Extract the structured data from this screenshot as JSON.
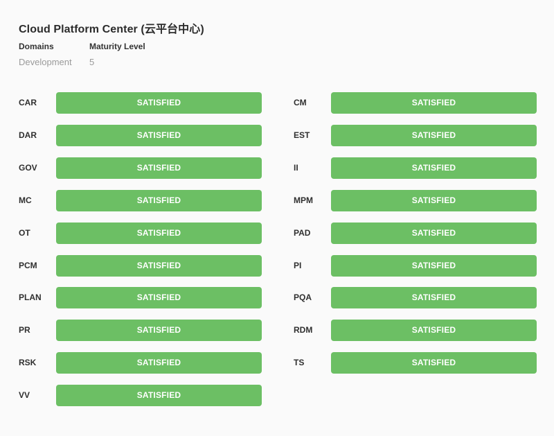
{
  "title": "Cloud Platform Center (云平台中心)",
  "meta": {
    "domains_label": "Domains",
    "maturity_label": "Maturity Level",
    "domains_value": "Development",
    "maturity_value": "5"
  },
  "colors": {
    "satisfied": "#6cbf64"
  },
  "left_column": [
    {
      "code": "CAR",
      "status": "SATISFIED"
    },
    {
      "code": "DAR",
      "status": "SATISFIED"
    },
    {
      "code": "GOV",
      "status": "SATISFIED"
    },
    {
      "code": "MC",
      "status": "SATISFIED"
    },
    {
      "code": "OT",
      "status": "SATISFIED"
    },
    {
      "code": "PCM",
      "status": "SATISFIED"
    },
    {
      "code": "PLAN",
      "status": "SATISFIED"
    },
    {
      "code": "PR",
      "status": "SATISFIED"
    },
    {
      "code": "RSK",
      "status": "SATISFIED"
    },
    {
      "code": "VV",
      "status": "SATISFIED"
    }
  ],
  "right_column": [
    {
      "code": "CM",
      "status": "SATISFIED"
    },
    {
      "code": "EST",
      "status": "SATISFIED"
    },
    {
      "code": "II",
      "status": "SATISFIED"
    },
    {
      "code": "MPM",
      "status": "SATISFIED"
    },
    {
      "code": "PAD",
      "status": "SATISFIED"
    },
    {
      "code": "PI",
      "status": "SATISFIED"
    },
    {
      "code": "PQA",
      "status": "SATISFIED"
    },
    {
      "code": "RDM",
      "status": "SATISFIED"
    },
    {
      "code": "TS",
      "status": "SATISFIED"
    }
  ]
}
